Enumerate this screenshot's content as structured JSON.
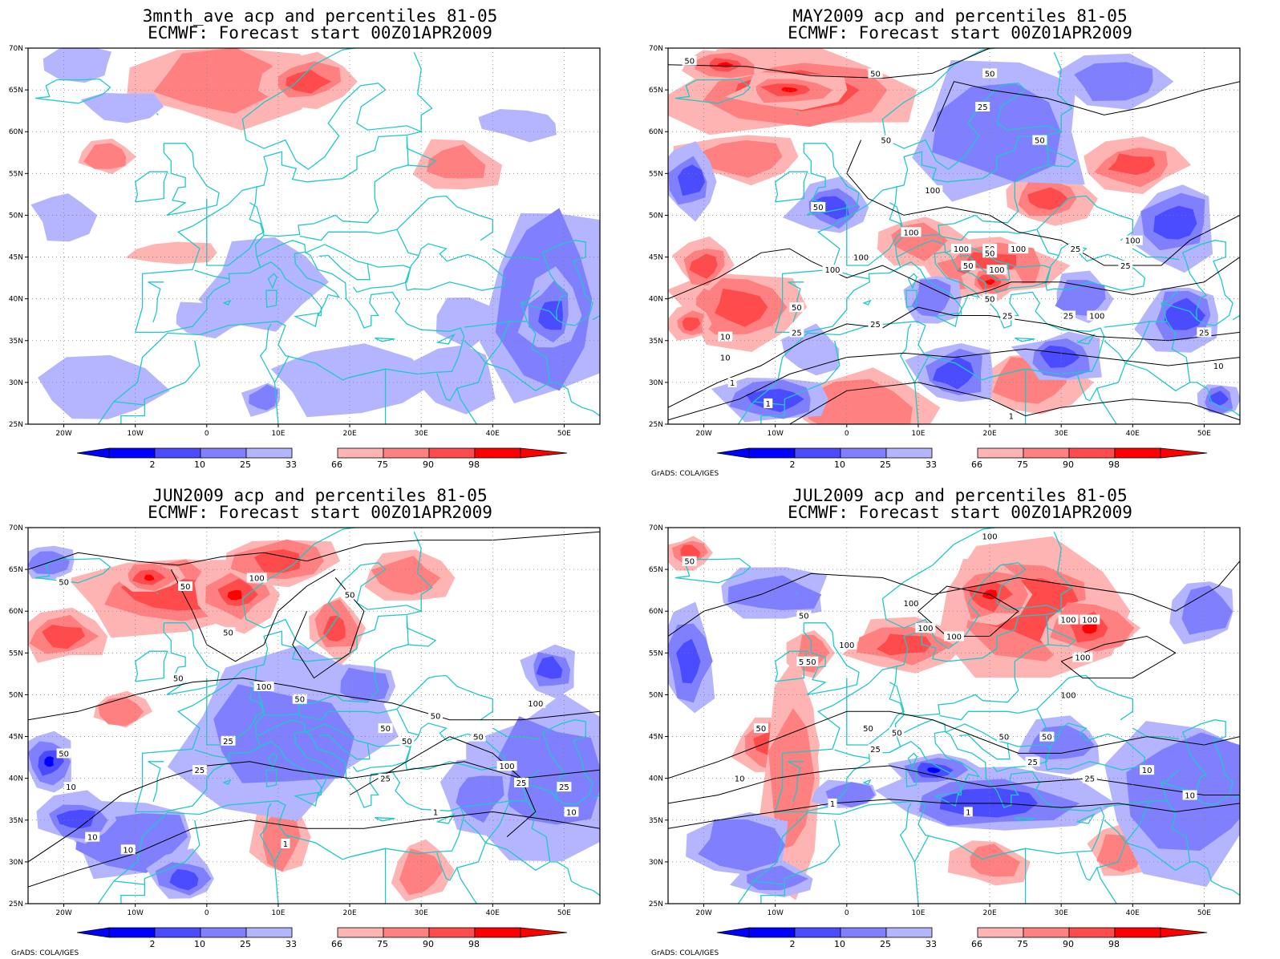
{
  "figure": {
    "panels": [
      {
        "title_line1": "3mnth_ave acp and percentiles 81-05",
        "title_line2": "ECMWF: Forecast start 00Z01APR2009",
        "credit": "",
        "contour_labels": []
      },
      {
        "title_line1": "MAY2009 acp and percentiles 81-05",
        "title_line2": "ECMWF: Forecast start 00Z01APR2009",
        "credit": "GrADS: COLA/IGES",
        "contour_labels": [
          "50",
          "50",
          "50",
          "50",
          "25",
          "50",
          "50",
          "100",
          "100",
          "100",
          "100",
          "100",
          "50",
          "100",
          "50",
          "100",
          "25",
          "25",
          "25",
          "25",
          "10",
          "50",
          "100",
          "25",
          "25",
          "10",
          "1",
          "10",
          "1",
          "1",
          "50",
          "50",
          "100",
          "25"
        ]
      },
      {
        "title_line1": "JUN2009 acp and percentiles 81-05",
        "title_line2": "ECMWF: Forecast start 00Z01APR2009",
        "credit": "GrADS: COLA/IGES",
        "contour_labels": [
          "50",
          "50",
          "100",
          "50",
          "50",
          "50",
          "100",
          "50",
          "50",
          "100",
          "50",
          "50",
          "25",
          "50",
          "25",
          "25",
          "10",
          "10",
          "10",
          "1",
          "1",
          "100",
          "25",
          "25",
          "10",
          "50"
        ]
      },
      {
        "title_line1": "JUL2009 acp and percentiles 81-05",
        "title_line2": "ECMWF: Forecast start 00Z01APR2009",
        "credit": "GrADS: COLA/IGES",
        "contour_labels": [
          "50",
          "100",
          "50",
          "100",
          "100",
          "100",
          "100",
          "100",
          "50",
          "50",
          "100",
          "100",
          "50",
          "50",
          "50",
          "25",
          "10",
          "1",
          "1",
          "25",
          "50",
          "10",
          "25",
          "10",
          "100",
          "50"
        ]
      }
    ],
    "lat_labels": [
      "70N",
      "65N",
      "60N",
      "55N",
      "50N",
      "45N",
      "40N",
      "35N",
      "30N",
      "25N"
    ],
    "lon_labels": [
      "20W",
      "10W",
      "0",
      "10E",
      "20E",
      "30E",
      "40E",
      "50E"
    ],
    "colorbar_labels": [
      "2",
      "10",
      "25",
      "33",
      "66",
      "75",
      "90",
      "98"
    ],
    "colors": {
      "below": [
        "#0000ff",
        "#4b4bff",
        "#8080ff",
        "#b4b4ff"
      ],
      "above": [
        "#ffb4b4",
        "#ff8080",
        "#ff4b4b",
        "#ff0000"
      ],
      "coast": "#20c8c8",
      "contour": "#000000"
    }
  }
}
